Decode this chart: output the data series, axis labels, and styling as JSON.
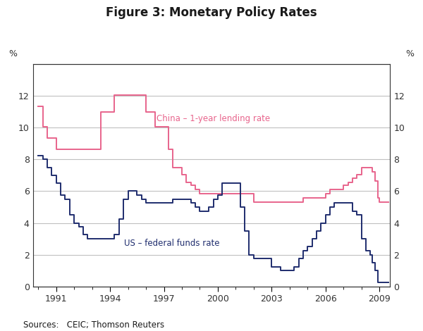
{
  "title": "Figure 3: Monetary Policy Rates",
  "source_text": "Sources:   CEIC; Thomson Reuters",
  "ylabel_left": "%",
  "ylabel_right": "%",
  "ylim": [
    0,
    14
  ],
  "yticks": [
    0,
    2,
    4,
    6,
    8,
    10,
    12
  ],
  "xlim_start": 1989.7,
  "xlim_end": 2009.6,
  "xticks": [
    1991,
    1994,
    1997,
    2000,
    2003,
    2006,
    2009
  ],
  "china_label": "China – 1-year lending rate",
  "us_label": "US – federal funds rate",
  "china_color": "#e8648c",
  "us_color": "#1f2d6e",
  "grid_color": "#c0c0c0",
  "bg_color": "#ffffff",
  "china_data": [
    [
      1990.0,
      11.34
    ],
    [
      1990.25,
      10.08
    ],
    [
      1990.5,
      9.36
    ],
    [
      1991.0,
      8.64
    ],
    [
      1992.75,
      8.64
    ],
    [
      1993.5,
      10.98
    ],
    [
      1994.0,
      10.98
    ],
    [
      1994.25,
      12.06
    ],
    [
      1995.5,
      12.06
    ],
    [
      1996.0,
      10.98
    ],
    [
      1996.5,
      10.08
    ],
    [
      1997.0,
      10.08
    ],
    [
      1997.25,
      8.64
    ],
    [
      1997.5,
      7.47
    ],
    [
      1998.0,
      7.02
    ],
    [
      1998.25,
      6.57
    ],
    [
      1998.5,
      6.39
    ],
    [
      1998.75,
      6.12
    ],
    [
      1999.0,
      5.85
    ],
    [
      2002.0,
      5.31
    ],
    [
      2004.75,
      5.31
    ],
    [
      2004.75,
      5.58
    ],
    [
      2006.0,
      5.85
    ],
    [
      2006.25,
      6.12
    ],
    [
      2007.0,
      6.39
    ],
    [
      2007.25,
      6.57
    ],
    [
      2007.5,
      6.84
    ],
    [
      2007.75,
      7.02
    ],
    [
      2008.0,
      7.47
    ],
    [
      2008.5,
      7.47
    ],
    [
      2008.6,
      7.2
    ],
    [
      2008.75,
      6.66
    ],
    [
      2008.9,
      5.58
    ],
    [
      2009.0,
      5.31
    ],
    [
      2009.5,
      5.31
    ]
  ],
  "us_data": [
    [
      1990.0,
      8.25
    ],
    [
      1990.25,
      8.0
    ],
    [
      1990.5,
      7.5
    ],
    [
      1990.75,
      7.0
    ],
    [
      1991.0,
      6.5
    ],
    [
      1991.25,
      5.75
    ],
    [
      1991.5,
      5.5
    ],
    [
      1991.75,
      4.5
    ],
    [
      1992.0,
      4.0
    ],
    [
      1992.25,
      3.75
    ],
    [
      1992.5,
      3.25
    ],
    [
      1992.75,
      3.0
    ],
    [
      1993.0,
      3.0
    ],
    [
      1994.0,
      3.0
    ],
    [
      1994.25,
      3.25
    ],
    [
      1994.5,
      4.25
    ],
    [
      1994.75,
      5.5
    ],
    [
      1995.0,
      6.0
    ],
    [
      1995.5,
      5.75
    ],
    [
      1995.75,
      5.5
    ],
    [
      1996.0,
      5.25
    ],
    [
      1997.0,
      5.25
    ],
    [
      1997.5,
      5.5
    ],
    [
      1998.0,
      5.5
    ],
    [
      1998.5,
      5.25
    ],
    [
      1998.75,
      5.0
    ],
    [
      1999.0,
      4.75
    ],
    [
      1999.5,
      5.0
    ],
    [
      1999.75,
      5.5
    ],
    [
      2000.0,
      5.75
    ],
    [
      2000.25,
      6.5
    ],
    [
      2001.0,
      6.5
    ],
    [
      2001.25,
      5.0
    ],
    [
      2001.5,
      3.5
    ],
    [
      2001.75,
      2.0
    ],
    [
      2002.0,
      1.75
    ],
    [
      2003.0,
      1.25
    ],
    [
      2003.5,
      1.0
    ],
    [
      2004.0,
      1.0
    ],
    [
      2004.25,
      1.25
    ],
    [
      2004.5,
      1.75
    ],
    [
      2004.75,
      2.25
    ],
    [
      2005.0,
      2.5
    ],
    [
      2005.25,
      3.0
    ],
    [
      2005.5,
      3.5
    ],
    [
      2005.75,
      4.0
    ],
    [
      2006.0,
      4.5
    ],
    [
      2006.25,
      5.0
    ],
    [
      2006.5,
      5.25
    ],
    [
      2007.0,
      5.25
    ],
    [
      2007.5,
      4.75
    ],
    [
      2007.75,
      4.5
    ],
    [
      2008.0,
      3.0
    ],
    [
      2008.25,
      2.25
    ],
    [
      2008.5,
      2.0
    ],
    [
      2008.6,
      1.5
    ],
    [
      2008.75,
      1.0
    ],
    [
      2008.9,
      0.25
    ],
    [
      2009.0,
      0.25
    ],
    [
      2009.5,
      0.25
    ]
  ]
}
